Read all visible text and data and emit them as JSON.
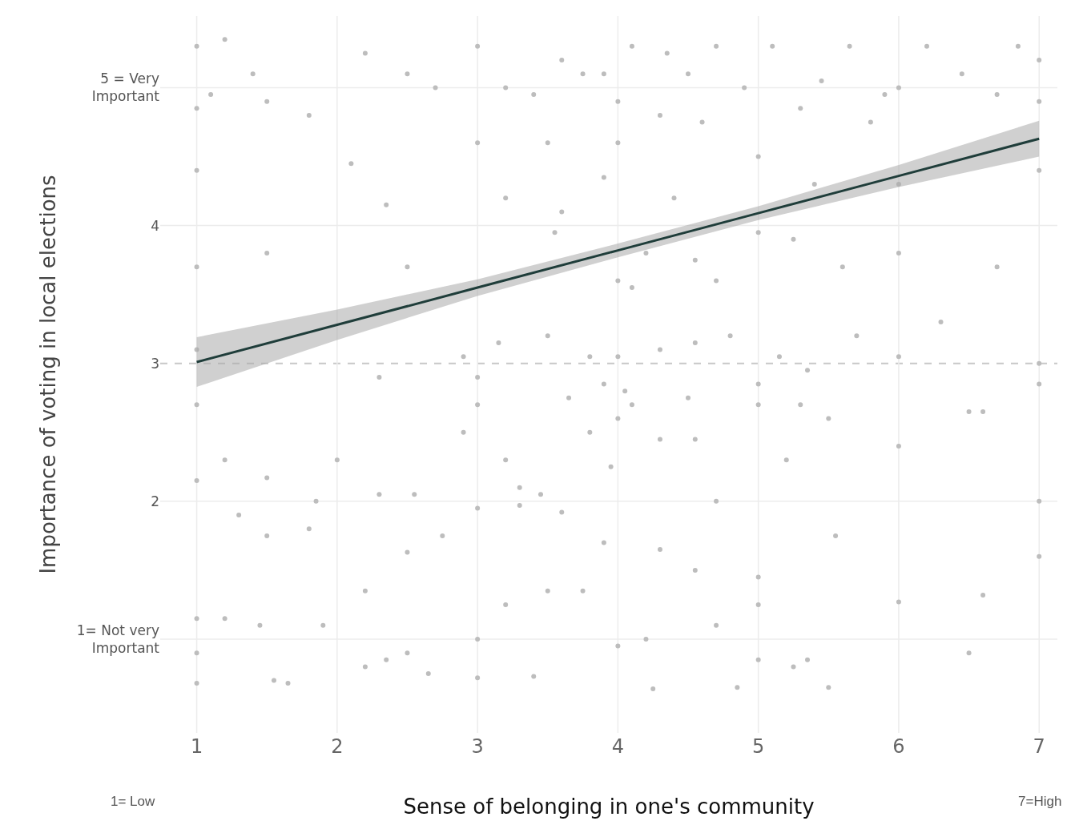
{
  "chart_data": {
    "type": "scatter",
    "xlabel": "Sense of belonging in one's community",
    "ylabel": "Importance of voting in local elections",
    "annotations": [
      "1= Low",
      "7=High"
    ],
    "xlim": [
      0.74,
      7.13
    ],
    "xticks": [
      1,
      2,
      3,
      4,
      5,
      6,
      7
    ],
    "ylim": [
      0.32,
      5.52
    ],
    "yticks": [
      {
        "value": 1,
        "label": "1= Not very\nImportant"
      },
      2,
      3,
      4,
      {
        "value": 5,
        "label": "5 = Very\nImportant"
      }
    ],
    "grid": true,
    "ref_lines": [
      {
        "axis": "y",
        "value": 3,
        "color": "#c8c8c8",
        "line_style": "dashed"
      }
    ],
    "series": [
      {
        "color": "#bdbdbd",
        "marker": "circle",
        "x": [
          1.0,
          1.2,
          1.0,
          1.5,
          1.85,
          2.0,
          2.3,
          2.55,
          2.9,
          3.0,
          3.2,
          3.3,
          3.45,
          3.65,
          3.8,
          3.95,
          4.0,
          4.1,
          4.3,
          4.55,
          4.7,
          5.0,
          5.2,
          5.5,
          6.0,
          6.5,
          1.3,
          1.5,
          1.8,
          2.5,
          2.75,
          3.0,
          3.3,
          3.6,
          3.9,
          4.3,
          4.55,
          5.0,
          5.0,
          5.55,
          6.0,
          6.6,
          7.0,
          1.0,
          1.0,
          1.2,
          1.45,
          1.9,
          2.2,
          2.5,
          3.0,
          3.2,
          3.5,
          3.75,
          4.0,
          4.2,
          4.7,
          5.0,
          5.35,
          5.5,
          6.5,
          1.0,
          1.55,
          1.65,
          2.2,
          2.35,
          2.65,
          3.0,
          3.4,
          4.25,
          4.85,
          5.25,
          1.0,
          1.0,
          1.1,
          1.2,
          1.4,
          1.5,
          1.8,
          1.0,
          1.0,
          1.5,
          2.1,
          2.35,
          2.5,
          2.2,
          2.5,
          2.7,
          3.0,
          3.0,
          3.2,
          3.4,
          3.5,
          3.55,
          3.6,
          3.75,
          3.9,
          4.0,
          4.0,
          4.0,
          4.1,
          4.3,
          4.35,
          4.5,
          4.6,
          4.7,
          4.9,
          5.0,
          5.1,
          5.3,
          5.45,
          5.65,
          5.8,
          5.9,
          6.0,
          6.2,
          6.45,
          6.7,
          6.85,
          7.0,
          7.0,
          4.1,
          4.2,
          4.55,
          4.7,
          5.0,
          5.25,
          5.6,
          6.0,
          6.7,
          6.0,
          5.4,
          4.4,
          3.9,
          3.6,
          3.2,
          3.5,
          3.15,
          3.8,
          4.0,
          4.3,
          4.55,
          4.8,
          5.15,
          5.35,
          5.7,
          6.0,
          6.3,
          7.0,
          7.0,
          2.9,
          2.3,
          1.0,
          3.0,
          3.9,
          4.05,
          4.5,
          5.0,
          5.3,
          6.6,
          7.0,
          7.0
        ],
        "values": [
          2.7,
          2.3,
          2.15,
          2.17,
          2.0,
          2.3,
          2.05,
          2.05,
          2.5,
          2.7,
          2.3,
          2.1,
          2.05,
          2.75,
          2.5,
          2.25,
          2.6,
          2.7,
          2.45,
          2.45,
          2.0,
          2.7,
          2.3,
          2.6,
          2.4,
          2.65,
          1.9,
          1.75,
          1.8,
          1.63,
          1.75,
          1.95,
          1.97,
          1.92,
          1.7,
          1.65,
          1.5,
          1.25,
          1.45,
          1.75,
          1.27,
          1.32,
          1.6,
          1.15,
          0.9,
          1.15,
          1.1,
          1.1,
          1.35,
          0.9,
          1.0,
          1.25,
          1.35,
          1.35,
          0.95,
          1.0,
          1.1,
          0.85,
          0.85,
          0.65,
          0.9,
          0.68,
          0.7,
          0.68,
          0.8,
          0.85,
          0.75,
          0.72,
          0.73,
          0.64,
          0.65,
          0.8,
          5.3,
          4.85,
          4.95,
          5.35,
          5.1,
          4.9,
          4.8,
          4.4,
          3.7,
          3.8,
          4.45,
          4.15,
          3.7,
          5.25,
          5.1,
          5.0,
          5.3,
          4.6,
          5.0,
          4.95,
          4.6,
          3.95,
          5.2,
          5.1,
          5.1,
          4.9,
          4.6,
          3.6,
          5.3,
          4.8,
          5.25,
          5.1,
          4.75,
          5.3,
          5.0,
          4.5,
          5.3,
          4.85,
          5.05,
          5.3,
          4.75,
          4.95,
          5.0,
          5.3,
          5.1,
          4.95,
          5.3,
          5.2,
          4.9,
          3.55,
          3.8,
          3.75,
          3.6,
          3.95,
          3.9,
          3.7,
          3.8,
          3.7,
          4.3,
          4.3,
          4.2,
          4.35,
          4.1,
          4.2,
          3.2,
          3.15,
          3.05,
          3.05,
          3.1,
          3.15,
          3.2,
          3.05,
          2.95,
          3.2,
          3.05,
          3.3,
          3.0,
          2.85,
          3.05,
          2.9,
          3.1,
          2.9,
          2.85,
          2.8,
          2.75,
          2.85,
          2.7,
          2.65,
          2.0,
          4.4
        ]
      },
      {
        "type": "line",
        "color": "#1f3d3a",
        "line_style": "solid",
        "marker": "none",
        "x": [
          1,
          2,
          3,
          4,
          5,
          6,
          7
        ],
        "values": [
          3.01,
          3.28,
          3.55,
          3.82,
          4.09,
          4.36,
          4.63
        ],
        "lower": [
          2.83,
          3.17,
          3.49,
          3.77,
          4.04,
          4.28,
          4.5
        ],
        "upper": [
          3.19,
          3.39,
          3.61,
          3.87,
          4.14,
          4.44,
          4.76
        ]
      }
    ]
  }
}
